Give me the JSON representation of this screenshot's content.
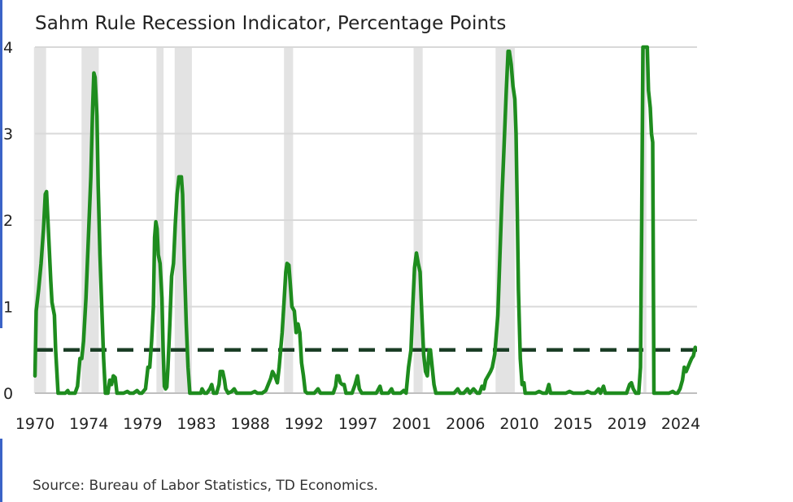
{
  "colors": {
    "line": "#1e8c1e",
    "threshold": "#1a3d25",
    "recession": "#e3e3e3",
    "grid": "#d9d9d9"
  },
  "title": "Sahm Rule Recession Indicator, Percentage Points",
  "source": "Source: Bureau of Labor Statistics, TD Economics.",
  "chart_data": {
    "type": "line",
    "title": "Sahm Rule Recession Indicator, Percentage Points",
    "xlim": [
      1970,
      2024.5
    ],
    "ylim": [
      0,
      4
    ],
    "x_tick_labels": [
      "1970",
      "1974",
      "1979",
      "1983",
      "1988",
      "1992",
      "1997",
      "2001",
      "2006",
      "2010",
      "2015",
      "2019",
      "2024"
    ],
    "y_tick_labels": [
      "0",
      "1",
      "2",
      "3",
      "4"
    ],
    "y_ticks": [
      0,
      1,
      2,
      3,
      4
    ],
    "threshold": 0.5,
    "recessions": [
      [
        "1969-12",
        "1970-11"
      ],
      [
        "1973-11",
        "1975-03"
      ],
      [
        "1980-01",
        "1980-07"
      ],
      [
        "1981-07",
        "1982-11"
      ],
      [
        "1990-07",
        "1991-03"
      ],
      [
        "2001-03",
        "2001-11"
      ],
      [
        "2007-12",
        "2009-06"
      ],
      [
        "2020-02",
        "2020-04"
      ]
    ],
    "series": [
      {
        "values": [
          [
            1970.0,
            0.2
          ],
          [
            1970.1,
            0.95
          ],
          [
            1970.3,
            1.2
          ],
          [
            1970.5,
            1.5
          ],
          [
            1970.7,
            1.9
          ],
          [
            1970.85,
            2.3
          ],
          [
            1970.95,
            2.33
          ],
          [
            1971.1,
            1.9
          ],
          [
            1971.3,
            1.3
          ],
          [
            1971.4,
            1.05
          ],
          [
            1971.6,
            0.9
          ],
          [
            1971.7,
            0.5
          ],
          [
            1971.9,
            0.0
          ],
          [
            1972.3,
            0.0
          ],
          [
            1972.5,
            0.0
          ],
          [
            1972.7,
            0.03
          ],
          [
            1972.8,
            0.0
          ],
          [
            1973.1,
            0.0
          ],
          [
            1973.3,
            0.0
          ],
          [
            1973.5,
            0.08
          ],
          [
            1973.7,
            0.4
          ],
          [
            1973.85,
            0.4
          ],
          [
            1974.0,
            0.6
          ],
          [
            1974.2,
            1.1
          ],
          [
            1974.4,
            1.8
          ],
          [
            1974.6,
            2.5
          ],
          [
            1974.75,
            3.3
          ],
          [
            1974.85,
            3.7
          ],
          [
            1974.95,
            3.65
          ],
          [
            1975.1,
            3.2
          ],
          [
            1975.2,
            2.4
          ],
          [
            1975.35,
            1.6
          ],
          [
            1975.5,
            1.0
          ],
          [
            1975.65,
            0.4
          ],
          [
            1975.8,
            0.0
          ],
          [
            1976.0,
            0.0
          ],
          [
            1976.15,
            0.15
          ],
          [
            1976.3,
            0.1
          ],
          [
            1976.45,
            0.2
          ],
          [
            1976.6,
            0.18
          ],
          [
            1976.75,
            0.0
          ],
          [
            1977.0,
            0.0
          ],
          [
            1977.3,
            0.0
          ],
          [
            1977.6,
            0.02
          ],
          [
            1977.8,
            0.0
          ],
          [
            1978.1,
            0.0
          ],
          [
            1978.4,
            0.03
          ],
          [
            1978.6,
            0.0
          ],
          [
            1978.8,
            0.0
          ],
          [
            1979.1,
            0.05
          ],
          [
            1979.3,
            0.3
          ],
          [
            1979.45,
            0.3
          ],
          [
            1979.6,
            0.6
          ],
          [
            1979.75,
            1.0
          ],
          [
            1979.85,
            1.8
          ],
          [
            1979.95,
            1.98
          ],
          [
            1980.05,
            1.9
          ],
          [
            1980.15,
            1.6
          ],
          [
            1980.3,
            1.5
          ],
          [
            1980.45,
            1.1
          ],
          [
            1980.55,
            0.5
          ],
          [
            1980.65,
            0.08
          ],
          [
            1980.75,
            0.05
          ],
          [
            1980.85,
            0.07
          ],
          [
            1980.95,
            0.3
          ],
          [
            1981.1,
            0.8
          ],
          [
            1981.25,
            1.35
          ],
          [
            1981.4,
            1.5
          ],
          [
            1981.55,
            1.95
          ],
          [
            1981.7,
            2.3
          ],
          [
            1981.85,
            2.5
          ],
          [
            1982.05,
            2.5
          ],
          [
            1982.15,
            2.3
          ],
          [
            1982.3,
            1.5
          ],
          [
            1982.45,
            0.8
          ],
          [
            1982.6,
            0.3
          ],
          [
            1982.75,
            0.0
          ],
          [
            1983.1,
            0.0
          ],
          [
            1983.4,
            0.0
          ],
          [
            1983.65,
            0.0
          ],
          [
            1983.75,
            0.05
          ],
          [
            1983.95,
            0.0
          ],
          [
            1984.15,
            0.0
          ],
          [
            1984.4,
            0.05
          ],
          [
            1984.55,
            0.1
          ],
          [
            1984.7,
            0.0
          ],
          [
            1984.95,
            0.0
          ],
          [
            1985.15,
            0.1
          ],
          [
            1985.25,
            0.25
          ],
          [
            1985.45,
            0.25
          ],
          [
            1985.6,
            0.15
          ],
          [
            1985.7,
            0.05
          ],
          [
            1985.9,
            0.0
          ],
          [
            1986.2,
            0.02
          ],
          [
            1986.4,
            0.05
          ],
          [
            1986.6,
            0.0
          ],
          [
            1986.9,
            0.0
          ],
          [
            1987.2,
            0.0
          ],
          [
            1987.5,
            0.0
          ],
          [
            1987.8,
            0.0
          ],
          [
            1988.1,
            0.02
          ],
          [
            1988.3,
            0.0
          ],
          [
            1988.7,
            0.0
          ],
          [
            1989.0,
            0.03
          ],
          [
            1989.2,
            0.1
          ],
          [
            1989.4,
            0.17
          ],
          [
            1989.55,
            0.25
          ],
          [
            1989.75,
            0.2
          ],
          [
            1989.95,
            0.12
          ],
          [
            1990.1,
            0.3
          ],
          [
            1990.35,
            0.7
          ],
          [
            1990.5,
            1.05
          ],
          [
            1990.65,
            1.4
          ],
          [
            1990.75,
            1.5
          ],
          [
            1990.9,
            1.48
          ],
          [
            1991.05,
            1.2
          ],
          [
            1991.15,
            1.0
          ],
          [
            1991.35,
            0.95
          ],
          [
            1991.5,
            0.7
          ],
          [
            1991.65,
            0.8
          ],
          [
            1991.8,
            0.7
          ],
          [
            1991.95,
            0.35
          ],
          [
            1992.1,
            0.2
          ],
          [
            1992.25,
            0.02
          ],
          [
            1992.4,
            0.0
          ],
          [
            1992.7,
            0.0
          ],
          [
            1993.0,
            0.0
          ],
          [
            1993.3,
            0.05
          ],
          [
            1993.5,
            0.0
          ],
          [
            1993.8,
            0.0
          ],
          [
            1994.0,
            0.0
          ],
          [
            1994.3,
            0.0
          ],
          [
            1994.55,
            0.0
          ],
          [
            1994.75,
            0.08
          ],
          [
            1994.85,
            0.2
          ],
          [
            1995.0,
            0.2
          ],
          [
            1995.15,
            0.12
          ],
          [
            1995.3,
            0.1
          ],
          [
            1995.45,
            0.1
          ],
          [
            1995.6,
            0.0
          ],
          [
            1995.85,
            0.0
          ],
          [
            1996.1,
            0.0
          ],
          [
            1996.35,
            0.1
          ],
          [
            1996.55,
            0.2
          ],
          [
            1996.7,
            0.05
          ],
          [
            1996.9,
            0.0
          ],
          [
            1997.2,
            0.0
          ],
          [
            1997.5,
            0.0
          ],
          [
            1997.8,
            0.0
          ],
          [
            1998.1,
            0.0
          ],
          [
            1998.4,
            0.08
          ],
          [
            1998.55,
            0.0
          ],
          [
            1998.8,
            0.0
          ],
          [
            1999.1,
            0.0
          ],
          [
            1999.35,
            0.05
          ],
          [
            1999.5,
            0.0
          ],
          [
            1999.8,
            0.0
          ],
          [
            2000.1,
            0.0
          ],
          [
            2000.35,
            0.03
          ],
          [
            2000.55,
            0.0
          ],
          [
            2000.75,
            0.3
          ],
          [
            2000.95,
            0.5
          ],
          [
            2001.1,
            1.0
          ],
          [
            2001.25,
            1.45
          ],
          [
            2001.4,
            1.62
          ],
          [
            2001.55,
            1.5
          ],
          [
            2001.7,
            1.4
          ],
          [
            2001.85,
            0.9
          ],
          [
            2002.0,
            0.45
          ],
          [
            2002.15,
            0.25
          ],
          [
            2002.3,
            0.2
          ],
          [
            2002.45,
            0.5
          ],
          [
            2002.55,
            0.5
          ],
          [
            2002.7,
            0.3
          ],
          [
            2002.85,
            0.1
          ],
          [
            2003.0,
            0.0
          ],
          [
            2003.3,
            0.0
          ],
          [
            2003.6,
            0.0
          ],
          [
            2003.9,
            0.0
          ],
          [
            2004.2,
            0.0
          ],
          [
            2004.5,
            0.0
          ],
          [
            2004.8,
            0.05
          ],
          [
            2005.0,
            0.0
          ],
          [
            2005.3,
            0.0
          ],
          [
            2005.6,
            0.05
          ],
          [
            2005.8,
            0.0
          ],
          [
            2006.1,
            0.05
          ],
          [
            2006.4,
            0.0
          ],
          [
            2006.6,
            0.0
          ],
          [
            2006.8,
            0.08
          ],
          [
            2006.95,
            0.05
          ],
          [
            2007.1,
            0.15
          ],
          [
            2007.3,
            0.2
          ],
          [
            2007.5,
            0.25
          ],
          [
            2007.65,
            0.3
          ],
          [
            2007.85,
            0.45
          ],
          [
            2008.1,
            0.9
          ],
          [
            2008.25,
            1.5
          ],
          [
            2008.45,
            2.3
          ],
          [
            2008.6,
            2.8
          ],
          [
            2008.8,
            3.5
          ],
          [
            2008.95,
            3.95
          ],
          [
            2009.05,
            3.95
          ],
          [
            2009.2,
            3.8
          ],
          [
            2009.35,
            3.55
          ],
          [
            2009.5,
            3.4
          ],
          [
            2009.6,
            3.0
          ],
          [
            2009.7,
            2.1
          ],
          [
            2009.8,
            1.2
          ],
          [
            2009.95,
            0.4
          ],
          [
            2010.1,
            0.1
          ],
          [
            2010.25,
            0.12
          ],
          [
            2010.35,
            0.0
          ],
          [
            2010.6,
            0.0
          ],
          [
            2010.9,
            0.0
          ],
          [
            2011.2,
            0.0
          ],
          [
            2011.5,
            0.02
          ],
          [
            2011.8,
            0.0
          ],
          [
            2012.1,
            0.0
          ],
          [
            2012.3,
            0.1
          ],
          [
            2012.45,
            0.0
          ],
          [
            2012.8,
            0.0
          ],
          [
            2013.1,
            0.0
          ],
          [
            2013.4,
            0.0
          ],
          [
            2013.7,
            0.0
          ],
          [
            2014.0,
            0.02
          ],
          [
            2014.3,
            0.0
          ],
          [
            2014.6,
            0.0
          ],
          [
            2014.9,
            0.0
          ],
          [
            2015.2,
            0.0
          ],
          [
            2015.5,
            0.02
          ],
          [
            2015.8,
            0.0
          ],
          [
            2016.1,
            0.0
          ],
          [
            2016.4,
            0.05
          ],
          [
            2016.55,
            0.0
          ],
          [
            2016.8,
            0.08
          ],
          [
            2016.95,
            0.0
          ],
          [
            2017.2,
            0.0
          ],
          [
            2017.5,
            0.0
          ],
          [
            2017.8,
            0.0
          ],
          [
            2018.1,
            0.0
          ],
          [
            2018.4,
            0.0
          ],
          [
            2018.7,
            0.0
          ],
          [
            2018.95,
            0.1
          ],
          [
            2019.1,
            0.12
          ],
          [
            2019.25,
            0.05
          ],
          [
            2019.45,
            0.0
          ],
          [
            2019.7,
            0.0
          ],
          [
            2019.85,
            0.3
          ],
          [
            2019.95,
            2.0
          ],
          [
            2020.05,
            4.0
          ],
          [
            2020.2,
            4.0
          ],
          [
            2020.3,
            4.0
          ],
          [
            2020.4,
            4.0
          ],
          [
            2020.5,
            3.5
          ],
          [
            2020.65,
            3.3
          ],
          [
            2020.75,
            3.0
          ],
          [
            2020.85,
            2.9
          ],
          [
            2020.95,
            0.0
          ],
          [
            2021.3,
            0.0
          ],
          [
            2021.6,
            0.0
          ],
          [
            2021.9,
            0.0
          ],
          [
            2022.2,
            0.0
          ],
          [
            2022.5,
            0.02
          ],
          [
            2022.7,
            0.0
          ],
          [
            2022.9,
            0.0
          ],
          [
            2023.1,
            0.05
          ],
          [
            2023.3,
            0.15
          ],
          [
            2023.45,
            0.3
          ],
          [
            2023.6,
            0.25
          ],
          [
            2023.75,
            0.3
          ],
          [
            2023.9,
            0.35
          ],
          [
            2024.05,
            0.4
          ],
          [
            2024.2,
            0.43
          ],
          [
            2024.35,
            0.53
          ]
        ]
      }
    ]
  }
}
